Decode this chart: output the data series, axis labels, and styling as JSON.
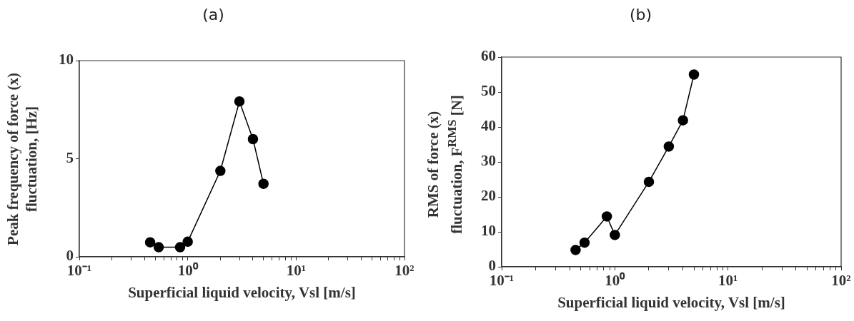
{
  "chart_data": [
    {
      "type": "line",
      "title": "(a)",
      "xlabel": "Superficial liquid velocity, Vsl [m/s]",
      "ylabel": "Peak frequency of force (x) fluctuation, [Hz]",
      "log": "x",
      "grid": false,
      "marker": "circle",
      "line_style": "solid",
      "x": [
        0.45,
        0.54,
        0.85,
        1.0,
        2.0,
        3.0,
        4.0,
        5.0
      ],
      "series": [
        {
          "color": "#000000",
          "values": [
            0.74,
            0.49,
            0.49,
            0.77,
            4.38,
            7.92,
            6.0,
            3.72
          ]
        }
      ],
      "xlim": [
        0.1,
        100
      ],
      "xticks": [
        {
          "value": 0.1,
          "label": "10⁻¹"
        },
        {
          "value": 0.2,
          "label": null
        },
        {
          "value": 0.3,
          "label": null
        },
        {
          "value": 0.4,
          "label": null
        },
        {
          "value": 0.5,
          "label": null
        },
        {
          "value": 0.6,
          "label": null
        },
        {
          "value": 0.7,
          "label": null
        },
        {
          "value": 0.8,
          "label": null
        },
        {
          "value": 0.9,
          "label": null
        },
        {
          "value": 1,
          "label": "10⁰"
        },
        {
          "value": 2,
          "label": null
        },
        {
          "value": 3,
          "label": null
        },
        {
          "value": 4,
          "label": null
        },
        {
          "value": 5,
          "label": null
        },
        {
          "value": 6,
          "label": null
        },
        {
          "value": 7,
          "label": null
        },
        {
          "value": 8,
          "label": null
        },
        {
          "value": 9,
          "label": null
        },
        {
          "value": 10,
          "label": "10¹"
        },
        {
          "value": 20,
          "label": null
        },
        {
          "value": 30,
          "label": null
        },
        {
          "value": 40,
          "label": null
        },
        {
          "value": 50,
          "label": null
        },
        {
          "value": 60,
          "label": null
        },
        {
          "value": 70,
          "label": null
        },
        {
          "value": 80,
          "label": null
        },
        {
          "value": 90,
          "label": null
        },
        {
          "value": 100,
          "label": "10²"
        }
      ],
      "ylim": [
        0,
        10
      ],
      "yticks": [
        0,
        5,
        10
      ]
    },
    {
      "type": "line",
      "title": "(b)",
      "xlabel": "Superficial liquid velocity, Vsl [m/s]",
      "ylabel": "RMS of force (x) fluctuation, F$^{RMS}$ [N]",
      "log": "x",
      "grid": false,
      "marker": "circle",
      "line_style": "solid",
      "x": [
        0.45,
        0.54,
        0.85,
        1.0,
        2.0,
        3.0,
        4.0,
        5.0
      ],
      "series": [
        {
          "color": "#000000",
          "values": [
            4.8,
            6.9,
            14.4,
            9.1,
            24.3,
            34.4,
            41.9,
            55.0
          ]
        }
      ],
      "xlim": [
        0.1,
        100
      ],
      "xticks": [
        {
          "value": 0.1,
          "label": "10⁻¹"
        },
        {
          "value": 0.2,
          "label": null
        },
        {
          "value": 0.3,
          "label": null
        },
        {
          "value": 0.4,
          "label": null
        },
        {
          "value": 0.5,
          "label": null
        },
        {
          "value": 0.6,
          "label": null
        },
        {
          "value": 0.7,
          "label": null
        },
        {
          "value": 0.8,
          "label": null
        },
        {
          "value": 0.9,
          "label": null
        },
        {
          "value": 1,
          "label": "10⁰"
        },
        {
          "value": 2,
          "label": null
        },
        {
          "value": 3,
          "label": null
        },
        {
          "value": 4,
          "label": null
        },
        {
          "value": 5,
          "label": null
        },
        {
          "value": 6,
          "label": null
        },
        {
          "value": 7,
          "label": null
        },
        {
          "value": 8,
          "label": null
        },
        {
          "value": 9,
          "label": null
        },
        {
          "value": 10,
          "label": "10¹"
        },
        {
          "value": 20,
          "label": null
        },
        {
          "value": 30,
          "label": null
        },
        {
          "value": 40,
          "label": null
        },
        {
          "value": 50,
          "label": null
        },
        {
          "value": 60,
          "label": null
        },
        {
          "value": 70,
          "label": null
        },
        {
          "value": 80,
          "label": null
        },
        {
          "value": 90,
          "label": null
        },
        {
          "value": 100,
          "label": "10²"
        }
      ],
      "ylim": [
        0,
        60
      ],
      "yticks": [
        0,
        10,
        20,
        30,
        40,
        50,
        60
      ]
    }
  ]
}
